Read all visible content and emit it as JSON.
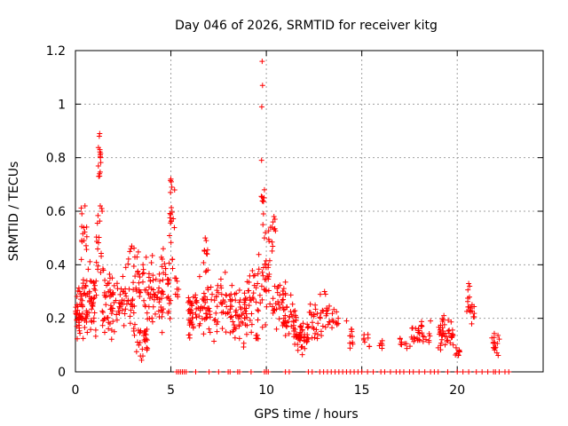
{
  "chart_data": {
    "type": "scatter",
    "title": "Day 046 of 2026, SRMTID for receiver kitg",
    "xlabel": "GPS time / hours",
    "ylabel": "SRMTID / TECUs",
    "xlim": [
      0,
      24.5
    ],
    "ylim": [
      0,
      1.2
    ],
    "x_ticks": [
      0,
      5,
      10,
      15,
      20
    ],
    "y_ticks": [
      0,
      0.2,
      0.4,
      0.6,
      0.8,
      1,
      1.2
    ],
    "x_tick_labels": [
      "0",
      "5",
      "10",
      "15",
      "20"
    ],
    "y_tick_labels": [
      "0",
      "0.2",
      "0.4",
      "0.6",
      "0.8",
      "1",
      "1.2"
    ],
    "grid": true,
    "marker": "+",
    "color": "#ff0000",
    "clusters": [
      {
        "x0": 0.0,
        "x1": 0.6,
        "lo": 0.09,
        "hi": 0.36,
        "n": 60
      },
      {
        "x0": 0.3,
        "x1": 0.6,
        "lo": 0.38,
        "hi": 0.62,
        "n": 14
      },
      {
        "x0": 0.6,
        "x1": 1.1,
        "lo": 0.12,
        "hi": 0.42,
        "n": 40
      },
      {
        "x0": 1.1,
        "x1": 1.4,
        "lo": 0.35,
        "hi": 0.62,
        "n": 14
      },
      {
        "x0": 1.2,
        "x1": 1.35,
        "lo": 0.72,
        "hi": 0.89,
        "n": 8
      },
      {
        "x0": 1.4,
        "x1": 2.6,
        "lo": 0.1,
        "hi": 0.4,
        "n": 70
      },
      {
        "x0": 2.6,
        "x1": 3.4,
        "lo": 0.12,
        "hi": 0.47,
        "n": 50
      },
      {
        "x0": 3.2,
        "x1": 3.8,
        "lo": 0.04,
        "hi": 0.2,
        "n": 22
      },
      {
        "x0": 3.5,
        "x1": 4.6,
        "lo": 0.12,
        "hi": 0.45,
        "n": 60
      },
      {
        "x0": 4.5,
        "x1": 5.1,
        "lo": 0.15,
        "hi": 0.48,
        "n": 30
      },
      {
        "x0": 4.9,
        "x1": 5.2,
        "lo": 0.42,
        "hi": 0.72,
        "n": 14
      },
      {
        "x0": 5.2,
        "x1": 5.5,
        "lo": 0.18,
        "hi": 0.38,
        "n": 8
      },
      {
        "x0": 5.9,
        "x1": 6.5,
        "lo": 0.12,
        "hi": 0.32,
        "n": 40
      },
      {
        "x0": 6.5,
        "x1": 7.5,
        "lo": 0.1,
        "hi": 0.38,
        "n": 50
      },
      {
        "x0": 6.7,
        "x1": 6.95,
        "lo": 0.35,
        "hi": 0.5,
        "n": 8
      },
      {
        "x0": 7.6,
        "x1": 8.4,
        "lo": 0.12,
        "hi": 0.38,
        "n": 40
      },
      {
        "x0": 8.3,
        "x1": 8.9,
        "lo": 0.08,
        "hi": 0.35,
        "n": 32
      },
      {
        "x0": 8.9,
        "x1": 9.6,
        "lo": 0.1,
        "hi": 0.4,
        "n": 40
      },
      {
        "x0": 9.6,
        "x1": 10.2,
        "lo": 0.15,
        "hi": 0.48,
        "n": 30
      },
      {
        "x0": 9.7,
        "x1": 9.85,
        "lo": 0.6,
        "hi": 0.68,
        "n": 5
      },
      {
        "x0": 10.1,
        "x1": 10.5,
        "lo": 0.42,
        "hi": 0.58,
        "n": 10
      },
      {
        "x0": 10.3,
        "x1": 11.1,
        "lo": 0.12,
        "hi": 0.38,
        "n": 40
      },
      {
        "x0": 11.0,
        "x1": 11.6,
        "lo": 0.1,
        "hi": 0.3,
        "n": 30
      },
      {
        "x0": 11.4,
        "x1": 12.2,
        "lo": 0.06,
        "hi": 0.2,
        "n": 45
      },
      {
        "x0": 12.2,
        "x1": 12.7,
        "lo": 0.1,
        "hi": 0.3,
        "n": 22
      },
      {
        "x0": 12.8,
        "x1": 13.3,
        "lo": 0.12,
        "hi": 0.3,
        "n": 18
      },
      {
        "x0": 13.3,
        "x1": 13.8,
        "lo": 0.15,
        "hi": 0.25,
        "n": 12
      },
      {
        "x0": 14.3,
        "x1": 14.6,
        "lo": 0.08,
        "hi": 0.18,
        "n": 10
      },
      {
        "x0": 15.1,
        "x1": 15.4,
        "lo": 0.08,
        "hi": 0.16,
        "n": 8
      },
      {
        "x0": 15.9,
        "x1": 16.1,
        "lo": 0.08,
        "hi": 0.12,
        "n": 6
      },
      {
        "x0": 17.0,
        "x1": 17.4,
        "lo": 0.08,
        "hi": 0.14,
        "n": 8
      },
      {
        "x0": 17.5,
        "x1": 18.2,
        "lo": 0.08,
        "hi": 0.2,
        "n": 22
      },
      {
        "x0": 18.2,
        "x1": 18.6,
        "lo": 0.08,
        "hi": 0.15,
        "n": 8
      },
      {
        "x0": 19.0,
        "x1": 19.8,
        "lo": 0.08,
        "hi": 0.21,
        "n": 40
      },
      {
        "x0": 19.8,
        "x1": 20.2,
        "lo": 0.05,
        "hi": 0.1,
        "n": 8
      },
      {
        "x0": 20.5,
        "x1": 20.9,
        "lo": 0.15,
        "hi": 0.33,
        "n": 18
      },
      {
        "x0": 21.8,
        "x1": 22.2,
        "lo": 0.05,
        "hi": 0.19,
        "n": 16
      }
    ],
    "points": [
      [
        9.78,
        1.16
      ],
      [
        9.8,
        1.07
      ],
      [
        9.76,
        0.99
      ],
      [
        9.75,
        0.79
      ],
      [
        9.9,
        0.68
      ],
      [
        9.88,
        0.65
      ],
      [
        9.85,
        0.59
      ],
      [
        1.27,
        0.89
      ],
      [
        1.25,
        0.88
      ],
      [
        1.28,
        0.83
      ],
      [
        1.3,
        0.81
      ],
      [
        1.31,
        0.8
      ],
      [
        1.26,
        0.74
      ],
      [
        1.22,
        0.73
      ],
      [
        5.0,
        0.72
      ],
      [
        5.02,
        0.71
      ],
      [
        5.05,
        0.69
      ],
      [
        4.98,
        0.67
      ],
      [
        0.5,
        0.62
      ],
      [
        1.3,
        0.62
      ],
      [
        1.38,
        0.61
      ],
      [
        1.4,
        0.6
      ],
      [
        10.4,
        0.58
      ],
      [
        10.45,
        0.57
      ],
      [
        10.35,
        0.56
      ],
      [
        10.3,
        0.54
      ],
      [
        9.82,
        0.55
      ],
      [
        9.95,
        0.52
      ],
      [
        9.9,
        0.5
      ],
      [
        2.95,
        0.47
      ],
      [
        2.9,
        0.46
      ],
      [
        4.6,
        0.46
      ],
      [
        6.8,
        0.5
      ],
      [
        6.85,
        0.49
      ],
      [
        6.9,
        0.44
      ],
      [
        13.05,
        0.3
      ],
      [
        13.1,
        0.29
      ],
      [
        14.2,
        0.19
      ],
      [
        18.6,
        0.19
      ],
      [
        19.3,
        0.21
      ],
      [
        20.6,
        0.33
      ],
      [
        20.65,
        0.32
      ]
    ],
    "zero_x": [
      5.3,
      5.4,
      5.5,
      5.6,
      5.7,
      5.8,
      6.3,
      7.0,
      7.5,
      8.0,
      8.1,
      8.5,
      8.6,
      9.2,
      9.9,
      10.0,
      10.1,
      11.0,
      11.2,
      12.2,
      12.4,
      12.8,
      13.0,
      13.2,
      13.4,
      13.6,
      13.8,
      14.0,
      14.2,
      14.4,
      14.6,
      14.8,
      15.0,
      15.3,
      15.6,
      16.0,
      16.2,
      16.5,
      16.8,
      17.0,
      17.2,
      17.5,
      17.7,
      18.0,
      18.3,
      18.6,
      18.8,
      19.0,
      19.5,
      20.0,
      20.3,
      20.6,
      21.0,
      21.3,
      21.6,
      21.9,
      22.0,
      22.2,
      22.5,
      22.7
    ]
  }
}
